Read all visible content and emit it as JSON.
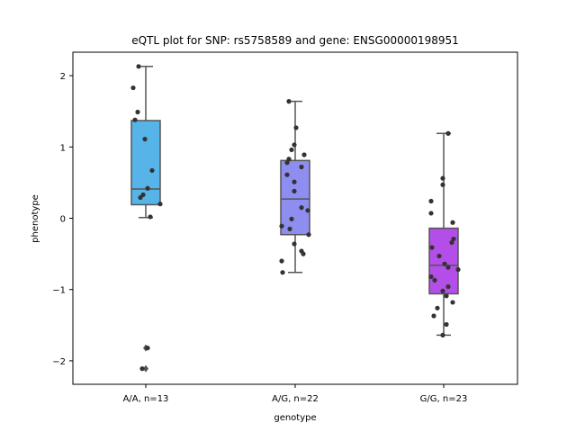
{
  "chart_data": {
    "type": "box",
    "title": "eQTL plot for SNP: rs5758589 and gene: ENSG00000198951",
    "xlabel": "genotype",
    "ylabel": "phenotype",
    "ylim": [
      -2.3,
      2.3
    ],
    "yticks": [
      -2,
      -1,
      0,
      1,
      2
    ],
    "grid": false,
    "categories": [
      "A/A, n=13",
      "A/G, n=22",
      "G/G, n=23"
    ],
    "colors": [
      "#56b4e9",
      "#8e8ef0",
      "#b44ee9"
    ],
    "boxes": [
      {
        "q1": 0.19,
        "median": 0.41,
        "q3": 1.37,
        "whisker_low": 0.01,
        "whisker_high": 2.13,
        "outliers": [
          -1.82,
          -2.11
        ]
      },
      {
        "q1": -0.23,
        "median": 0.27,
        "q3": 0.81,
        "whisker_low": -0.76,
        "whisker_high": 1.64,
        "outliers": []
      },
      {
        "q1": -1.06,
        "median": -0.66,
        "q3": -0.14,
        "whisker_low": -1.64,
        "whisker_high": 1.19,
        "outliers": []
      }
    ],
    "points": [
      [
        2.13,
        1.83,
        1.49,
        1.38,
        1.11,
        0.67,
        0.42,
        0.33,
        0.29,
        0.2,
        0.02,
        -1.82,
        -2.11
      ],
      [
        1.64,
        1.27,
        1.03,
        0.96,
        0.89,
        0.83,
        0.78,
        0.72,
        0.61,
        0.51,
        0.38,
        0.15,
        0.11,
        -0.01,
        -0.11,
        -0.15,
        -0.23,
        -0.36,
        -0.46,
        -0.5,
        -0.6,
        -0.76
      ],
      [
        1.19,
        0.56,
        0.47,
        0.24,
        0.07,
        -0.06,
        -0.29,
        -0.34,
        -0.41,
        -0.53,
        -0.64,
        -0.69,
        -0.82,
        -0.87,
        -0.96,
        -1.02,
        -1.09,
        -1.18,
        -1.26,
        -1.37,
        -1.49,
        -1.64,
        -0.72
      ]
    ]
  }
}
